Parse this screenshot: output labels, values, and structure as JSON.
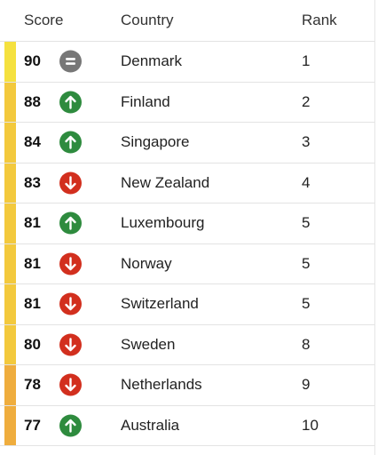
{
  "header": {
    "score": "Score",
    "country": "Country",
    "rank": "Rank"
  },
  "trend_colors": {
    "same": "#777777",
    "up": "#2e8b3e",
    "down": "#d22f1e"
  },
  "rows": [
    {
      "score": "90",
      "trend": "same",
      "country": "Denmark",
      "rank": "1",
      "bar_color": "#f5e13f"
    },
    {
      "score": "88",
      "trend": "up",
      "country": "Finland",
      "rank": "2",
      "bar_color": "#f3c93d"
    },
    {
      "score": "84",
      "trend": "up",
      "country": "Singapore",
      "rank": "3",
      "bar_color": "#f3c93d"
    },
    {
      "score": "83",
      "trend": "down",
      "country": "New Zealand",
      "rank": "4",
      "bar_color": "#f3c93d"
    },
    {
      "score": "81",
      "trend": "up",
      "country": "Luxembourg",
      "rank": "5",
      "bar_color": "#f3c93d"
    },
    {
      "score": "81",
      "trend": "down",
      "country": "Norway",
      "rank": "5",
      "bar_color": "#f3c93d"
    },
    {
      "score": "81",
      "trend": "down",
      "country": "Switzerland",
      "rank": "5",
      "bar_color": "#f3c93d"
    },
    {
      "score": "80",
      "trend": "down",
      "country": "Sweden",
      "rank": "8",
      "bar_color": "#f3c93d"
    },
    {
      "score": "78",
      "trend": "down",
      "country": "Netherlands",
      "rank": "9",
      "bar_color": "#efad3e"
    },
    {
      "score": "77",
      "trend": "up",
      "country": "Australia",
      "rank": "10",
      "bar_color": "#efad3e"
    }
  ]
}
